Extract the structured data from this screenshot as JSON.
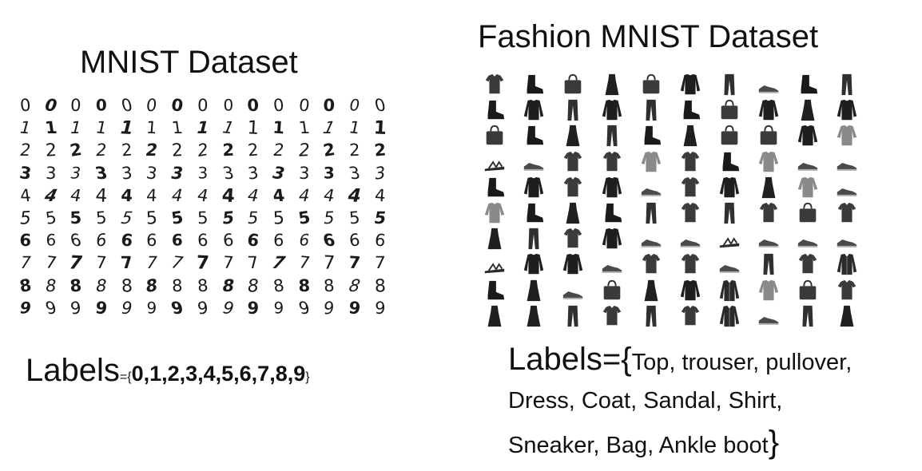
{
  "mnist": {
    "title": "MNIST Dataset",
    "labels_word": "Labels",
    "labels_eq": "={",
    "labels_list": "0,1,2,3,4,5,6,7,8,9",
    "labels_close": "}",
    "digits": [
      "0",
      "1",
      "2",
      "3",
      "4",
      "5",
      "6",
      "7",
      "8",
      "9"
    ],
    "samples_per_row": 15
  },
  "fashion": {
    "title": "Fashion MNIST Dataset",
    "labels_word": "Labels=",
    "labels_open": "{",
    "labels_line1": "Top, trouser, pullover,",
    "labels_line2": "Dress, Coat, Sandal, Shirt,",
    "labels_line3": "Sneaker, Bag, Ankle boot",
    "labels_close": "}",
    "grid": [
      [
        "top",
        "ankle-boot",
        "bag",
        "dress",
        "bag",
        "pullover",
        "trouser",
        "sneaker",
        "ankle-boot",
        "trouser"
      ],
      [
        "ankle-boot",
        "pullover",
        "trouser",
        "pullover",
        "trouser",
        "ankle-boot",
        "bag",
        "pullover",
        "dress",
        "pullover"
      ],
      [
        "bag",
        "ankle-boot",
        "dress",
        "trouser",
        "ankle-boot",
        "dress",
        "bag",
        "bag",
        "pullover",
        "shirt"
      ],
      [
        "sandal",
        "sneaker",
        "top",
        "top",
        "shirt",
        "top",
        "ankle-boot",
        "shirt",
        "sneaker",
        "sneaker"
      ],
      [
        "ankle-boot",
        "pullover",
        "top",
        "pullover",
        "sneaker",
        "top",
        "pullover",
        "dress",
        "shirt",
        "sneaker"
      ],
      [
        "shirt",
        "ankle-boot",
        "dress",
        "ankle-boot",
        "trouser",
        "top",
        "trouser",
        "top",
        "bag",
        "top"
      ],
      [
        "dress",
        "trouser",
        "top",
        "pullover",
        "sneaker",
        "sneaker",
        "sandal",
        "sneaker",
        "sneaker",
        "sneaker"
      ],
      [
        "sandal",
        "pullover",
        "pullover",
        "sneaker",
        "top",
        "top",
        "sneaker",
        "trouser",
        "top",
        "coat"
      ],
      [
        "ankle-boot",
        "dress",
        "sneaker",
        "bag",
        "dress",
        "pullover",
        "coat",
        "shirt",
        "bag",
        "top"
      ],
      [
        "dress",
        "dress",
        "trouser",
        "top",
        "trouser",
        "top",
        "coat",
        "sneaker",
        "trouser",
        "dress"
      ]
    ]
  }
}
